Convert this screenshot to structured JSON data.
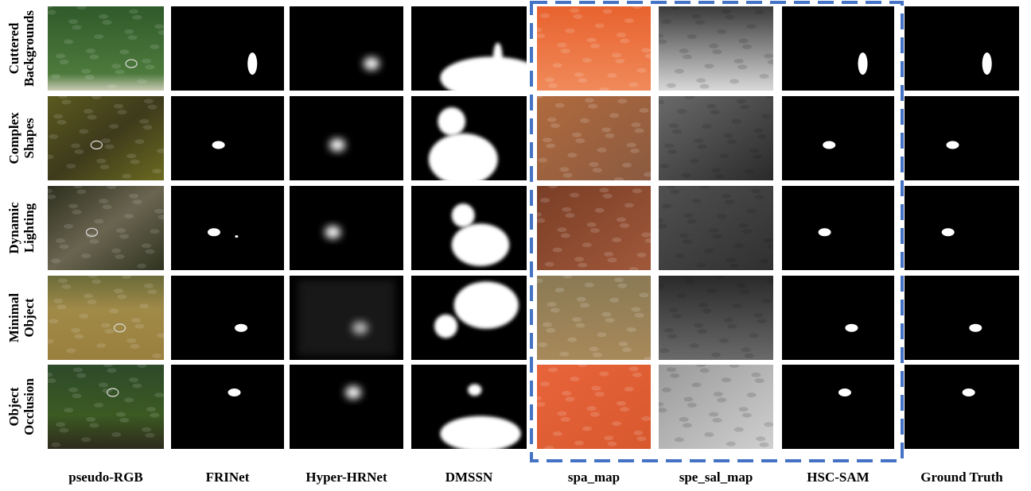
{
  "row_labels": [
    [
      "Cuttered",
      "Backgrounds"
    ],
    [
      "Complex",
      "Shapes"
    ],
    [
      "Dynamic",
      "Lighting"
    ],
    [
      "Minimal",
      "Object"
    ],
    [
      "Object",
      "Occlusion"
    ]
  ],
  "column_labels": [
    "pseudo-RGB",
    "FRINet",
    "Hyper-HRNet",
    "DMSSN",
    "spa_map",
    "spe_sal_map",
    "HSC-SAM",
    "Ground Truth"
  ]
}
